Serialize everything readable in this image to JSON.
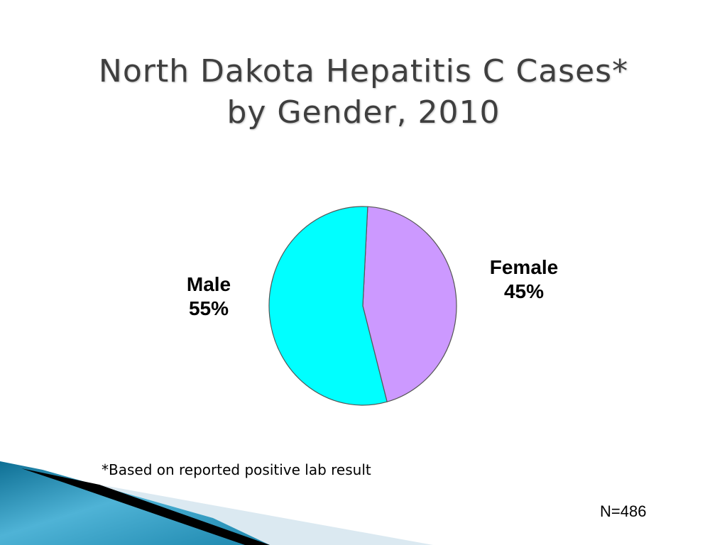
{
  "slide": {
    "title_line1": "North Dakota Hepatitis C Cases*",
    "title_line2": "by Gender, 2010",
    "footnote": "*Based on reported positive lab result",
    "n_label": "N=486"
  },
  "chart_data": {
    "type": "pie",
    "title": "North Dakota Hepatitis C Cases* by Gender, 2010",
    "slices": [
      {
        "name": "Female",
        "value": 45,
        "value_label": "45%",
        "color": "#cc99ff"
      },
      {
        "name": "Male",
        "value": 55,
        "value_label": "55%",
        "color": "#00ffff"
      }
    ],
    "start_angle_deg": 3,
    "direction": "clockwise"
  },
  "colors": {
    "slice_outline": "#555555",
    "title_color": "#3f3f3f",
    "decoration_blue": "#2b8fb3",
    "decoration_light": "#dbe9f1"
  }
}
